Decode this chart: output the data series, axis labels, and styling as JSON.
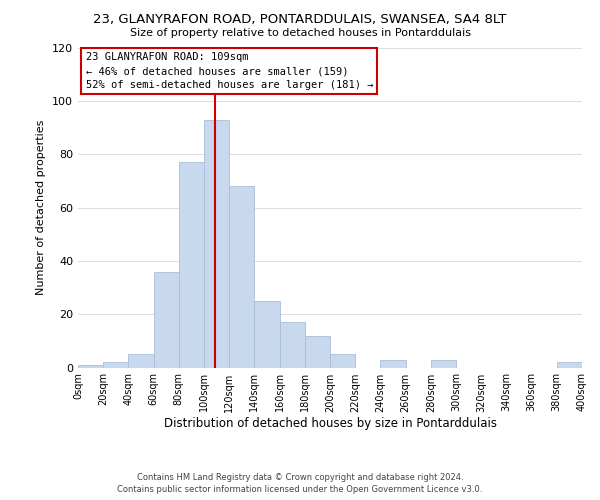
{
  "title": "23, GLANYRAFON ROAD, PONTARDDULAIS, SWANSEA, SA4 8LT",
  "subtitle": "Size of property relative to detached houses in Pontarddulais",
  "xlabel": "Distribution of detached houses by size in Pontarddulais",
  "ylabel": "Number of detached properties",
  "bin_edges": [
    0,
    20,
    40,
    60,
    80,
    100,
    120,
    140,
    160,
    180,
    200,
    220,
    240,
    260,
    280,
    300,
    320,
    340,
    360,
    380,
    400
  ],
  "counts": [
    1,
    2,
    5,
    36,
    77,
    93,
    68,
    25,
    17,
    12,
    5,
    0,
    3,
    0,
    3,
    0,
    0,
    0,
    0,
    2
  ],
  "bar_color": "#c8d9ee",
  "bar_edge_color": "#a8bedc",
  "vline_x": 109,
  "vline_color": "#cc0000",
  "ylim": [
    0,
    120
  ],
  "yticks": [
    0,
    20,
    40,
    60,
    80,
    100,
    120
  ],
  "annotation_title": "23 GLANYRAFON ROAD: 109sqm",
  "annotation_line1": "← 46% of detached houses are smaller (159)",
  "annotation_line2": "52% of semi-detached houses are larger (181) →",
  "annotation_box_color": "#ffffff",
  "annotation_box_edge": "#cc0000",
  "footer1": "Contains HM Land Registry data © Crown copyright and database right 2024.",
  "footer2": "Contains public sector information licensed under the Open Government Licence v3.0.",
  "background_color": "#ffffff",
  "grid_color": "#dddddd"
}
